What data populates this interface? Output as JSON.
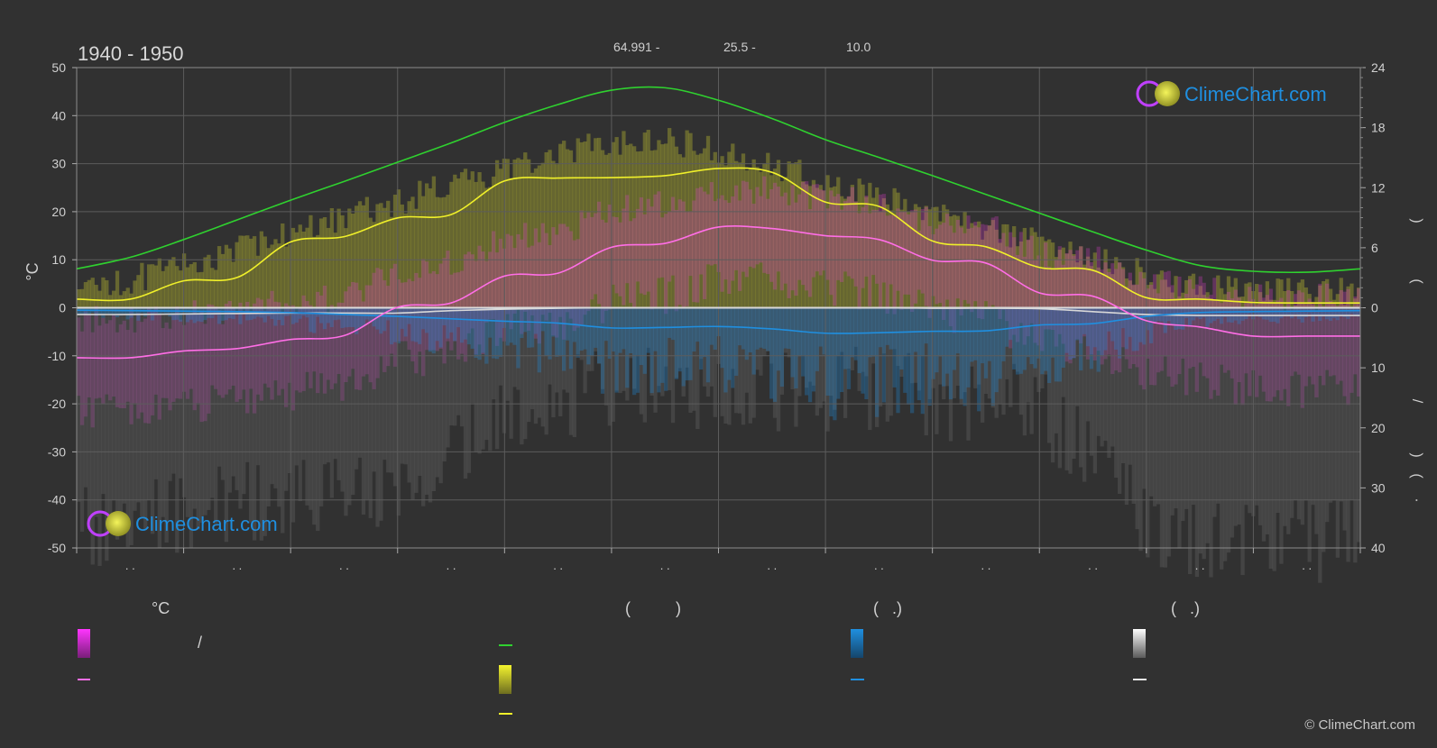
{
  "header": {
    "period": "1940 - 1950",
    "top_values": [
      "64.991 -",
      "25.5 -",
      "10.0"
    ]
  },
  "logo_text": "ClimeChart.com",
  "copyright": "© ClimeChart.com",
  "legend": {
    "col1_header": "°C",
    "col1_slash": "/",
    "col2_header": "(          )",
    "col3_header": "(   .)",
    "col4_header": "(   .)"
  },
  "colors": {
    "background": "#313131",
    "daylight": "#2fd12f",
    "sunshine": "#f0f02a",
    "sunshine_fill": "#bcbc30",
    "temp_mean": "#ff6ee6",
    "temp_fill": "#e33ed0",
    "rain": "#1f8fe0",
    "snow": "#d8d8d8",
    "logo_text": "#1f8fe0"
  },
  "chart_data": {
    "type": "line",
    "x_tick_labels": [
      ". .",
      ". .",
      ". .",
      ". .",
      ". .",
      ". .",
      ". .",
      ". .",
      ". .",
      ". .",
      ". .",
      ". ."
    ],
    "ylabel": "°C",
    "ylim": [
      -50,
      50
    ],
    "y_ticks": [
      50,
      40,
      30,
      20,
      10,
      0,
      -10,
      -20,
      -30,
      -40,
      -50
    ],
    "y2_upper_ticks": [
      24,
      18,
      12,
      6,
      0
    ],
    "y2_lower_ticks": [
      10,
      20,
      30,
      40
    ],
    "y2_labels": [
      ")",
      "(",
      "/",
      ")",
      "(",
      "·"
    ],
    "grid": true,
    "x": [
      0,
      0.5,
      1,
      1.5,
      2,
      2.5,
      3,
      3.5,
      4,
      4.5,
      5,
      5.5,
      6,
      6.5,
      7,
      7.5,
      8,
      8.5,
      9,
      9.5,
      10,
      10.5,
      11,
      11.5,
      12
    ],
    "series": [
      {
        "key": "daylight",
        "values": [
          8.1,
          10.5,
          14.2,
          18.3,
          22.4,
          26.3,
          30.3,
          34.3,
          38.6,
          42.3,
          45.3,
          45.8,
          43.2,
          39.4,
          35.0,
          31.3,
          27.5,
          23.6,
          19.7,
          15.8,
          12.0,
          8.8,
          7.6,
          7.4,
          8.1
        ]
      },
      {
        "key": "sunshine",
        "values": [
          1.8,
          1.8,
          5.6,
          6.3,
          13.7,
          14.8,
          18.7,
          19.4,
          26.4,
          27.0,
          27.1,
          27.5,
          29.0,
          28.2,
          22.0,
          21.1,
          13.9,
          12.7,
          8.4,
          7.8,
          2.1,
          1.8,
          1.1,
          1.0,
          1.0
        ]
      },
      {
        "key": "temp_mean",
        "values": [
          -10.4,
          -10.4,
          -9.0,
          -8.5,
          -6.6,
          -5.8,
          0.1,
          1.0,
          6.6,
          7.2,
          12.6,
          13.4,
          16.8,
          16.5,
          15.0,
          14.2,
          9.9,
          9.3,
          3.1,
          2.4,
          -2.7,
          -4.0,
          -5.9,
          -5.9,
          -5.9
        ]
      },
      {
        "key": "rain",
        "values": [
          -0.5,
          -0.6,
          -0.7,
          -0.8,
          -1.0,
          -1.4,
          -1.8,
          -2.3,
          -2.8,
          -3.2,
          -4.2,
          -4.1,
          -3.9,
          -4.4,
          -5.3,
          -5.2,
          -4.9,
          -4.8,
          -3.6,
          -3.3,
          -1.8,
          -1.0,
          -0.8,
          -0.7,
          -0.6
        ]
      },
      {
        "key": "snow",
        "values": [
          -1.4,
          -1.4,
          -1.3,
          -1.2,
          -1.1,
          -1.1,
          -1.1,
          -0.6,
          -0.3,
          -0.1,
          0.0,
          0.0,
          0.0,
          0.0,
          0.0,
          0.0,
          -0.1,
          -0.1,
          -0.2,
          -0.8,
          -1.4,
          -1.6,
          -1.6,
          -1.6,
          -1.6
        ]
      }
    ]
  }
}
